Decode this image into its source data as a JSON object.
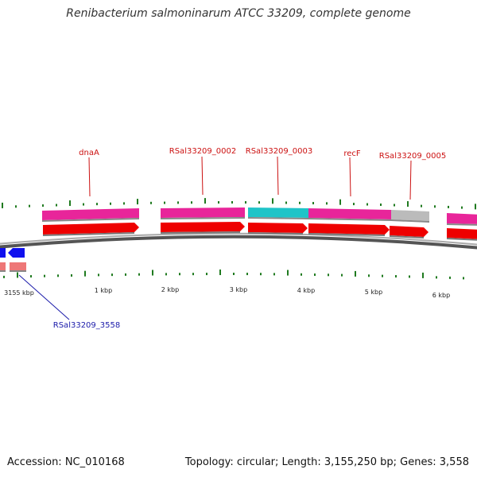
{
  "title": "Renibacterium salmoninarum ATCC 33209, complete genome",
  "footer": {
    "accession": "Accession: NC_010168",
    "summary": "Topology: circular; Length: 3,155,250 bp; Genes: 3,558"
  },
  "colors": {
    "cds_magenta": "#e8259a",
    "cds_cyan": "#1fc4c8",
    "cds_gray": "#bbbbbb",
    "feature_red": "#ee0000",
    "feature_blue": "#1010ee",
    "feature_pink": "#ee7777",
    "backbone": "#808080",
    "tick_green": "#1f7a1f",
    "label_red": "#cc1111",
    "label_blue": "#1a1aaa"
  },
  "scale": {
    "unit": "kbp",
    "labels": [
      "3155 kbp",
      "1 kbp",
      "2 kbp",
      "3 kbp",
      "4 kbp",
      "5 kbp",
      "6 kbp"
    ]
  },
  "genes": [
    {
      "label": "dnaA",
      "strand": "forward",
      "cds_color": "magenta"
    },
    {
      "label": "RSal33209_0002",
      "strand": "forward",
      "cds_color": "magenta"
    },
    {
      "label": "RSal33209_0003",
      "strand": "forward",
      "cds_color": "cyan"
    },
    {
      "label": "recF",
      "strand": "forward",
      "cds_color": "magenta"
    },
    {
      "label": "RSal33209_0005",
      "strand": "forward",
      "cds_color": "gray"
    },
    {
      "label": "RSal33209_3558",
      "strand": "reverse",
      "cds_color": "pink"
    }
  ]
}
